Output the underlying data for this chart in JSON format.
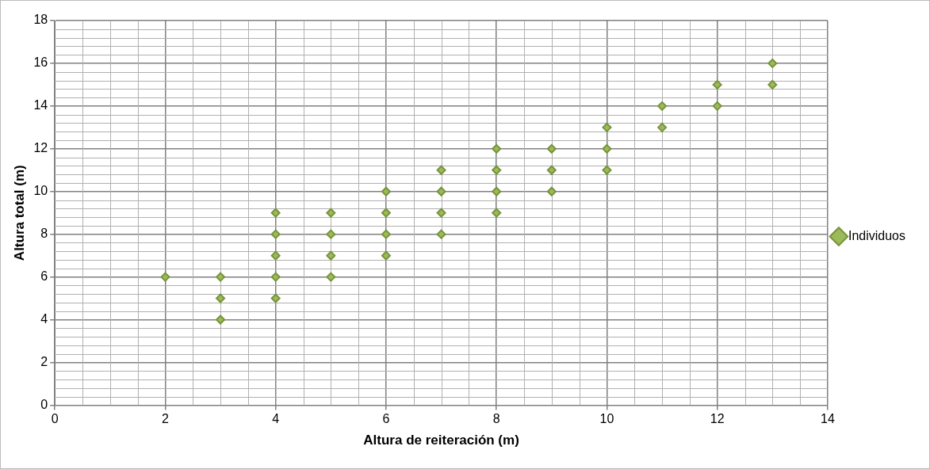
{
  "chart_data": {
    "type": "scatter",
    "xlabel": "Altura de reiteración (m)",
    "ylabel": "Altura total (m)",
    "x": [
      2,
      3,
      3,
      3,
      4,
      4,
      4,
      4,
      4,
      5,
      5,
      5,
      5,
      6,
      6,
      6,
      6,
      7,
      7,
      7,
      7,
      8,
      8,
      8,
      8,
      9,
      9,
      9,
      10,
      10,
      10,
      11,
      11,
      12,
      12,
      13,
      13
    ],
    "series": [
      {
        "name": "Individuos",
        "color": "#77933c",
        "values": [
          6,
          6,
          5,
          4,
          9,
          8,
          7,
          6,
          5,
          9,
          8,
          7,
          6,
          10,
          9,
          8,
          7,
          11,
          10,
          9,
          8,
          12,
          11,
          10,
          9,
          12,
          11,
          10,
          13,
          12,
          11,
          14,
          13,
          15,
          14,
          16,
          15
        ]
      }
    ],
    "xlim": [
      0,
      14
    ],
    "xticks": [
      0,
      2,
      4,
      6,
      8,
      10,
      12,
      14
    ],
    "ylim": [
      0,
      18
    ],
    "yticks": [
      0,
      2,
      4,
      6,
      8,
      10,
      12,
      14,
      16,
      18
    ],
    "grid": true,
    "legend": "right",
    "marker": "diamond"
  }
}
